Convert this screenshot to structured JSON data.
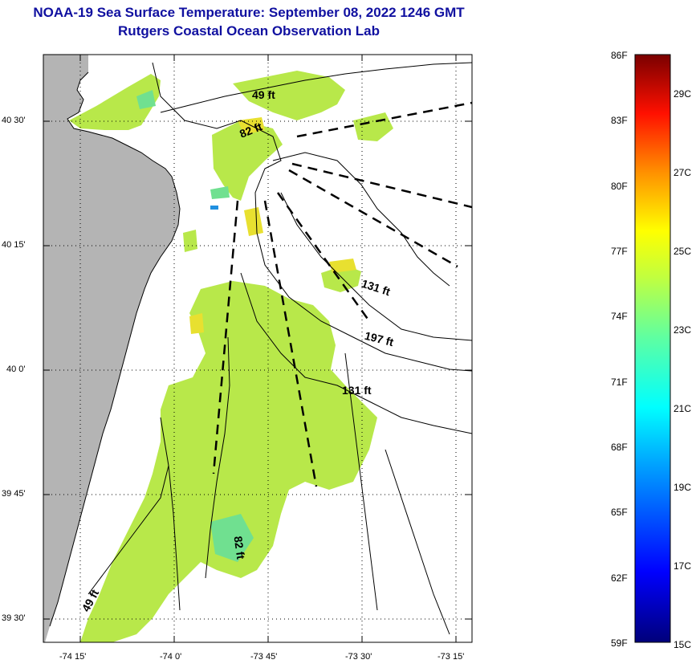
{
  "title": {
    "line1": "NOAA-19 Sea Surface Temperature:  September 08, 2022 1246 GMT",
    "line2": "Rutgers Coastal Ocean Observation Lab"
  },
  "axes": {
    "lat_labels": [
      "40 30'",
      "40 15'",
      "40 0'",
      "39 45'",
      "39 30'"
    ],
    "lon_labels": [
      "-74 15'",
      "-74 0'",
      "-73 45'",
      "-73 30'",
      "-73 15'"
    ]
  },
  "depth_labels": [
    "49 ft",
    "82 ft",
    "131 ft",
    "197 ft",
    "131 ft",
    "82 ft",
    "49 ft"
  ],
  "colorbar": {
    "f_labels": [
      "86F",
      "83F",
      "80F",
      "77F",
      "74F",
      "71F",
      "68F",
      "65F",
      "62F",
      "59F"
    ],
    "c_labels": [
      "29C",
      "27C",
      "25C",
      "23C",
      "21C",
      "19C",
      "17C",
      "15C"
    ]
  },
  "colors": {
    "title": "#1010a0",
    "land": "#b4b4b4",
    "sst_main": "#b8e84a",
    "sst_warm": "#e8e030",
    "sst_cool": "#70e090"
  }
}
